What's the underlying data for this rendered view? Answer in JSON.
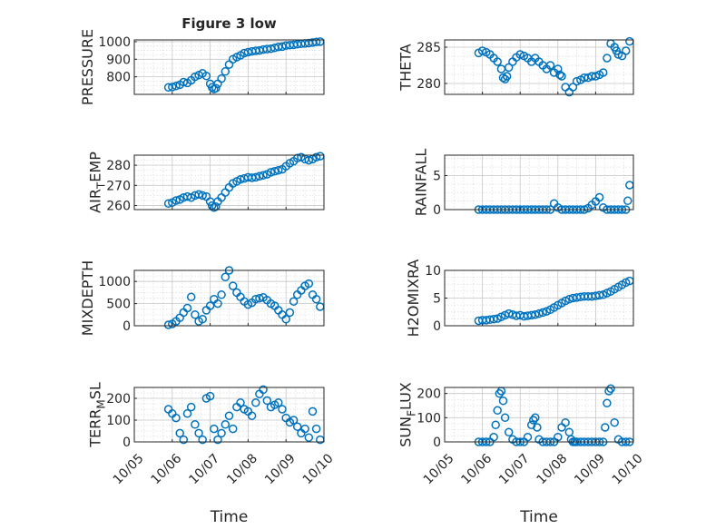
{
  "chart_data": [
    {
      "type": "scatter",
      "title": "Figure 3 low",
      "ylabel": "PRESSURE",
      "ylim": [
        700,
        1010
      ],
      "yticks": [
        800,
        900,
        1000
      ],
      "xticklabels": [
        "10/05",
        "10/06",
        "10/07",
        "10/08",
        "10/09",
        "10/10"
      ],
      "xlabel": "",
      "grid": true,
      "marker_color": "#0072BD",
      "series": [
        {
          "x": [
            0.9,
            1.0,
            1.1,
            1.2,
            1.3,
            1.4,
            1.5,
            1.6,
            1.7,
            1.8,
            1.9,
            2.0,
            2.05,
            2.1,
            2.15,
            2.2,
            2.3,
            2.4,
            2.5,
            2.6,
            2.7,
            2.8,
            2.9,
            3.0,
            3.1,
            3.2,
            3.3,
            3.4,
            3.5,
            3.6,
            3.7,
            3.8,
            3.9,
            4.0,
            4.1,
            4.2,
            4.3,
            4.4,
            4.5,
            4.6,
            4.7,
            4.8,
            4.9
          ],
          "y": [
            740,
            742,
            748,
            755,
            770,
            765,
            780,
            800,
            810,
            820,
            805,
            760,
            740,
            730,
            735,
            760,
            790,
            830,
            870,
            900,
            912,
            922,
            935,
            940,
            945,
            948,
            950,
            955,
            958,
            960,
            965,
            970,
            972,
            978,
            980,
            982,
            985,
            988,
            990,
            992,
            995,
            998,
            1000
          ]
        }
      ]
    },
    {
      "type": "scatter",
      "title": "",
      "ylabel": "THETA",
      "ylim": [
        278.5,
        286
      ],
      "yticks": [
        280,
        285
      ],
      "xticklabels": [
        "10/05",
        "10/06",
        "10/07",
        "10/08",
        "10/09",
        "10/10"
      ],
      "xlabel": "",
      "grid": true,
      "marker_color": "#0072BD",
      "series": [
        {
          "x": [
            0.9,
            1.0,
            1.1,
            1.2,
            1.3,
            1.4,
            1.5,
            1.55,
            1.6,
            1.65,
            1.7,
            1.8,
            1.9,
            2.0,
            2.1,
            2.2,
            2.3,
            2.4,
            2.5,
            2.6,
            2.7,
            2.8,
            2.9,
            3.0,
            3.05,
            3.1,
            3.2,
            3.3,
            3.4,
            3.5,
            3.6,
            3.7,
            3.8,
            3.9,
            4.0,
            4.1,
            4.2,
            4.3,
            4.4,
            4.5,
            4.55,
            4.6,
            4.7,
            4.8,
            4.9
          ],
          "y": [
            284.2,
            284.5,
            284.3,
            284,
            283.5,
            283,
            282,
            280.8,
            280.6,
            281,
            282.2,
            283,
            283.6,
            284,
            283.8,
            283.5,
            283,
            283.5,
            283,
            282.5,
            282,
            282.5,
            281.5,
            282,
            281.2,
            281,
            279.5,
            278.8,
            279.5,
            280.3,
            280.5,
            280.8,
            280.8,
            281,
            281,
            281.2,
            281.5,
            283.5,
            285.5,
            285,
            284.5,
            284,
            283.8,
            284.5,
            285.8
          ]
        }
      ]
    },
    {
      "type": "scatter",
      "title": "",
      "ylabel": "AIR_TEMP",
      "ylabel_parts": [
        "AIR",
        "T",
        "EMP"
      ],
      "ylim": [
        258,
        285
      ],
      "yticks": [
        260,
        270,
        280
      ],
      "xticklabels": [
        "10/05",
        "10/06",
        "10/07",
        "10/08",
        "10/09",
        "10/10"
      ],
      "xlabel": "",
      "grid": true,
      "marker_color": "#0072BD",
      "series": [
        {
          "x": [
            0.9,
            1.0,
            1.1,
            1.2,
            1.3,
            1.4,
            1.5,
            1.6,
            1.7,
            1.8,
            1.9,
            2.0,
            2.05,
            2.1,
            2.15,
            2.2,
            2.3,
            2.4,
            2.5,
            2.6,
            2.7,
            2.8,
            2.9,
            3.0,
            3.1,
            3.2,
            3.3,
            3.4,
            3.5,
            3.6,
            3.7,
            3.8,
            3.9,
            4.0,
            4.1,
            4.2,
            4.3,
            4.4,
            4.5,
            4.6,
            4.7,
            4.8,
            4.9
          ],
          "y": [
            261,
            261.5,
            262.5,
            263,
            264,
            264.5,
            264,
            265,
            265.5,
            265,
            264.5,
            262,
            260,
            259,
            259.5,
            262,
            264,
            266.5,
            269,
            271,
            272,
            273,
            273.5,
            274,
            273.8,
            274,
            274.5,
            275,
            275.5,
            276.5,
            277,
            277.5,
            278,
            279.5,
            281,
            282,
            283.5,
            284,
            283,
            282.5,
            283,
            284,
            284.5
          ]
        }
      ]
    },
    {
      "type": "scatter",
      "title": "",
      "ylabel": "RAINFALL",
      "ylim": [
        0,
        8
      ],
      "yticks": [
        0,
        5
      ],
      "xticklabels": [
        "10/05",
        "10/06",
        "10/07",
        "10/08",
        "10/09",
        "10/10"
      ],
      "xlabel": "",
      "grid": true,
      "marker_color": "#0072BD",
      "series": [
        {
          "x": [
            0.9,
            1.0,
            1.1,
            1.2,
            1.3,
            1.4,
            1.5,
            1.6,
            1.7,
            1.8,
            1.9,
            2.0,
            2.1,
            2.2,
            2.3,
            2.4,
            2.5,
            2.6,
            2.7,
            2.8,
            2.9,
            3.0,
            3.1,
            3.2,
            3.3,
            3.4,
            3.5,
            3.6,
            3.7,
            3.8,
            3.9,
            4.0,
            4.1,
            4.2,
            4.3,
            4.4,
            4.5,
            4.6,
            4.7,
            4.8,
            4.85,
            4.9
          ],
          "y": [
            0,
            0,
            0,
            0,
            0,
            0,
            0,
            0,
            0,
            0,
            0,
            0,
            0,
            0,
            0,
            0,
            0,
            0,
            0,
            0,
            0.9,
            0.3,
            0,
            0,
            0,
            0,
            0,
            0,
            0,
            0.2,
            0.7,
            1.2,
            1.8,
            0.3,
            0,
            0,
            0,
            0,
            0,
            0,
            1.3,
            3.6
          ]
        }
      ]
    },
    {
      "type": "scatter",
      "title": "",
      "ylabel": "MIXDEPTH",
      "ylim": [
        0,
        1250
      ],
      "yticks": [
        0,
        500,
        1000
      ],
      "xticklabels": [
        "10/05",
        "10/06",
        "10/07",
        "10/08",
        "10/09",
        "10/10"
      ],
      "xlabel": "",
      "grid": true,
      "marker_color": "#0072BD",
      "series": [
        {
          "x": [
            0.9,
            1.0,
            1.1,
            1.2,
            1.3,
            1.4,
            1.5,
            1.6,
            1.7,
            1.8,
            1.9,
            2.0,
            2.1,
            2.2,
            2.3,
            2.4,
            2.5,
            2.6,
            2.7,
            2.8,
            2.9,
            3.0,
            3.1,
            3.2,
            3.3,
            3.4,
            3.5,
            3.6,
            3.7,
            3.8,
            3.9,
            4.0,
            4.1,
            4.2,
            4.3,
            4.4,
            4.5,
            4.6,
            4.7,
            4.8,
            4.9
          ],
          "y": [
            20,
            40,
            100,
            180,
            300,
            400,
            650,
            250,
            100,
            150,
            350,
            450,
            600,
            500,
            700,
            1100,
            1250,
            900,
            750,
            650,
            550,
            480,
            520,
            600,
            620,
            640,
            580,
            500,
            450,
            350,
            250,
            150,
            300,
            550,
            700,
            800,
            900,
            950,
            700,
            600,
            430
          ]
        }
      ]
    },
    {
      "type": "scatter",
      "title": "",
      "ylabel": "H2OMIXRA",
      "ylim": [
        0,
        10
      ],
      "yticks": [
        0,
        5,
        10
      ],
      "xticklabels": [
        "10/05",
        "10/06",
        "10/07",
        "10/08",
        "10/09",
        "10/10"
      ],
      "xlabel": "",
      "grid": true,
      "marker_color": "#0072BD",
      "series": [
        {
          "x": [
            0.9,
            1.0,
            1.1,
            1.2,
            1.3,
            1.4,
            1.5,
            1.6,
            1.7,
            1.8,
            1.9,
            2.0,
            2.1,
            2.2,
            2.3,
            2.4,
            2.5,
            2.6,
            2.7,
            2.8,
            2.9,
            3.0,
            3.1,
            3.2,
            3.3,
            3.4,
            3.5,
            3.6,
            3.7,
            3.8,
            3.9,
            4.0,
            4.1,
            4.2,
            4.3,
            4.4,
            4.5,
            4.6,
            4.7,
            4.8,
            4.9
          ],
          "y": [
            0.9,
            1.0,
            1.0,
            1.1,
            1.2,
            1.3,
            1.6,
            1.9,
            2.2,
            2.0,
            1.8,
            1.9,
            1.7,
            1.8,
            1.9,
            2.0,
            2.2,
            2.4,
            2.6,
            2.9,
            3.3,
            3.7,
            4.1,
            4.5,
            4.8,
            5.0,
            5.1,
            5.2,
            5.3,
            5.3,
            5.3,
            5.4,
            5.5,
            5.6,
            5.9,
            6.2,
            6.6,
            7.0,
            7.4,
            7.8,
            8.1
          ]
        }
      ]
    },
    {
      "type": "scatter",
      "title": "",
      "ylabel": "TERR_MSL",
      "ylabel_parts": [
        "TERR",
        "M",
        "SL"
      ],
      "ylim": [
        0,
        250
      ],
      "yticks": [
        0,
        100,
        200
      ],
      "xticklabels": [
        "10/05",
        "10/06",
        "10/07",
        "10/08",
        "10/09",
        "10/10"
      ],
      "xlabel": "Time",
      "grid": true,
      "marker_color": "#0072BD",
      "series": [
        {
          "x": [
            0.9,
            1.0,
            1.1,
            1.2,
            1.3,
            1.4,
            1.5,
            1.6,
            1.7,
            1.8,
            1.9,
            2.0,
            2.1,
            2.2,
            2.3,
            2.4,
            2.5,
            2.6,
            2.7,
            2.8,
            2.9,
            3.0,
            3.1,
            3.2,
            3.3,
            3.4,
            3.5,
            3.6,
            3.7,
            3.8,
            3.9,
            4.0,
            4.1,
            4.2,
            4.3,
            4.4,
            4.5,
            4.6,
            4.7,
            4.8,
            4.9
          ],
          "y": [
            150,
            130,
            110,
            40,
            10,
            130,
            160,
            80,
            40,
            10,
            200,
            210,
            60,
            10,
            40,
            80,
            120,
            60,
            160,
            180,
            150,
            140,
            120,
            180,
            220,
            240,
            190,
            160,
            170,
            180,
            150,
            110,
            90,
            100,
            70,
            40,
            60,
            20,
            140,
            60,
            10
          ]
        }
      ]
    },
    {
      "type": "scatter",
      "title": "",
      "ylabel": "SUN_FLUX",
      "ylabel_parts": [
        "SUN",
        "F",
        "LUX"
      ],
      "ylim": [
        0,
        225
      ],
      "yticks": [
        0,
        100,
        200
      ],
      "xticklabels": [
        "10/05",
        "10/06",
        "10/07",
        "10/08",
        "10/09",
        "10/10"
      ],
      "xlabel": "Time",
      "grid": true,
      "marker_color": "#0072BD",
      "series": [
        {
          "x": [
            0.9,
            1.0,
            1.1,
            1.2,
            1.3,
            1.35,
            1.4,
            1.45,
            1.5,
            1.55,
            1.6,
            1.7,
            1.8,
            1.9,
            2.0,
            2.1,
            2.2,
            2.3,
            2.35,
            2.4,
            2.45,
            2.5,
            2.6,
            2.7,
            2.8,
            2.9,
            3.0,
            3.1,
            3.2,
            3.3,
            3.35,
            3.4,
            3.45,
            3.5,
            3.6,
            3.7,
            3.8,
            3.9,
            4.0,
            4.1,
            4.2,
            4.25,
            4.3,
            4.35,
            4.4,
            4.5,
            4.6,
            4.7,
            4.8,
            4.9
          ],
          "y": [
            0,
            0,
            0,
            0,
            20,
            70,
            130,
            200,
            210,
            170,
            100,
            40,
            10,
            0,
            0,
            0,
            20,
            70,
            90,
            100,
            60,
            10,
            0,
            0,
            0,
            0,
            20,
            60,
            80,
            40,
            10,
            0,
            0,
            0,
            0,
            0,
            0,
            0,
            0,
            0,
            0,
            60,
            160,
            210,
            220,
            80,
            10,
            0,
            0,
            0
          ]
        }
      ]
    }
  ]
}
